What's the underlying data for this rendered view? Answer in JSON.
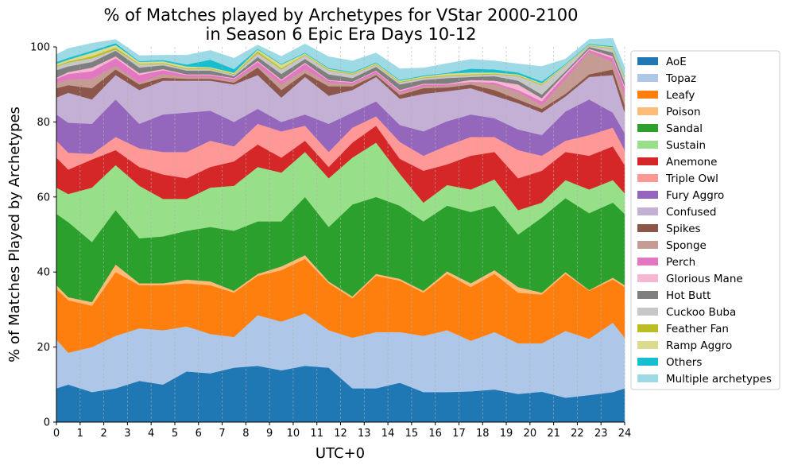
{
  "chart_data": {
    "type": "area",
    "stacked": true,
    "title_lines": [
      "% of Matches played by Archetypes for VStar 2000-2100",
      "in Season 6 Epic Era Days 10-12"
    ],
    "xlabel": "UTC+0",
    "ylabel": "% of Matches Played by Archetypes",
    "xlim": [
      0,
      24
    ],
    "ylim": [
      0,
      100
    ],
    "xticks": [
      0,
      1,
      2,
      3,
      4,
      5,
      6,
      7,
      8,
      9,
      10,
      11,
      12,
      13,
      14,
      15,
      16,
      17,
      18,
      19,
      20,
      21,
      22,
      23,
      24
    ],
    "yticks": [
      0,
      20,
      40,
      60,
      80,
      100
    ],
    "grid": "vertical dashed",
    "legend_position": "right",
    "x": [
      0,
      0.5,
      1.5,
      2.5,
      3.5,
      4.5,
      5.5,
      6.5,
      7.5,
      8.5,
      9.5,
      10.5,
      11.5,
      12.5,
      13.5,
      14.5,
      15.5,
      16.5,
      17.5,
      18.5,
      19.5,
      20.5,
      21.5,
      22.5,
      23.5,
      24
    ],
    "series": [
      {
        "name": "AoE",
        "color": "#1f77b4",
        "values": [
          9,
          10,
          8,
          9,
          11,
          10,
          13.5,
          13,
          14.5,
          15,
          13.8,
          15,
          14.5,
          9,
          9,
          10.5,
          8,
          8,
          8.2,
          8.7,
          7.5,
          8.1,
          6.5,
          7.2,
          8,
          9
        ]
      },
      {
        "name": "Topaz",
        "color": "#aec7e8",
        "values": [
          13,
          8.5,
          12,
          14,
          14,
          14.5,
          12,
          10.5,
          8.2,
          13.5,
          13,
          14,
          10,
          13.5,
          15,
          13.5,
          15,
          16.5,
          13.5,
          15.3,
          13.5,
          12.9,
          17.8,
          15,
          18.5,
          13.5
        ]
      },
      {
        "name": "Leafy",
        "color": "#ff7f0e",
        "values": [
          13.5,
          14,
          11,
          17,
          11.5,
          12,
          11.5,
          13,
          11.8,
          10.5,
          13.7,
          14.5,
          12.5,
          10.5,
          15,
          13.7,
          11.5,
          15,
          14.3,
          15.5,
          13.5,
          13,
          15.2,
          12.8,
          11.5,
          13.5
        ]
      },
      {
        "name": "Poison",
        "color": "#ffbb78",
        "values": [
          1,
          0.8,
          1,
          2,
          0.5,
          0.5,
          1,
          1,
          0.5,
          0.5,
          1,
          1,
          0.5,
          0.5,
          0.5,
          0.5,
          0.5,
          0.7,
          1,
          1,
          1.5,
          0.5,
          0.5,
          0.2,
          0.5,
          0.5
        ]
      },
      {
        "name": "Sandal",
        "color": "#2ca02c",
        "values": [
          19,
          20,
          16,
          14.5,
          12,
          12.5,
          13,
          14.5,
          16,
          14,
          12,
          15.5,
          14.5,
          24.5,
          20.5,
          19.5,
          18.5,
          17.5,
          19,
          17.2,
          14,
          20,
          19.7,
          20.5,
          20,
          19
        ]
      },
      {
        "name": "Sustain",
        "color": "#98df8a",
        "values": [
          7,
          7.5,
          14.5,
          12,
          14,
          10,
          8.5,
          10.5,
          12,
          14.5,
          13,
          12,
          13,
          12.5,
          14.5,
          8.5,
          5,
          5.5,
          6,
          7,
          6.5,
          4,
          4.8,
          6.3,
          6,
          5.5
        ]
      },
      {
        "name": "Anemone",
        "color": "#d62728",
        "values": [
          8,
          6.5,
          7.5,
          4,
          5,
          6.5,
          5.5,
          5.5,
          6.5,
          6,
          4,
          3,
          3,
          4,
          4.5,
          4,
          8.5,
          5.5,
          9,
          7.3,
          8.5,
          8.5,
          7.5,
          9,
          9,
          7.5
        ]
      },
      {
        "name": "Triple Owl",
        "color": "#ff9896",
        "values": [
          4.5,
          4.5,
          1.5,
          3.5,
          5,
          6,
          7,
          7,
          4,
          5.5,
          7,
          4,
          4,
          4,
          2.5,
          4.5,
          4,
          5,
          5,
          4,
          7.5,
          4,
          3,
          5.5,
          5,
          4
        ]
      },
      {
        "name": "Fury Aggro",
        "color": "#9467bd",
        "values": [
          7,
          8,
          8,
          10,
          6.5,
          10,
          10.5,
          8,
          6.5,
          4,
          2.5,
          3,
          7.5,
          4,
          4,
          4.5,
          6.5,
          6.5,
          6,
          5,
          5.5,
          5.5,
          7.8,
          9.5,
          4,
          4.5
        ]
      },
      {
        "name": "Confused",
        "color": "#c5b0d5",
        "values": [
          4.5,
          8,
          6.5,
          6.5,
          9,
          9,
          8.5,
          8,
          10,
          9,
          6.5,
          10,
          7.5,
          6,
          6.5,
          7,
          10,
          8,
          7,
          6,
          7,
          6,
          4,
          6,
          10,
          5.5
        ]
      },
      {
        "name": "Spikes",
        "color": "#8c564b",
        "values": [
          2.5,
          2,
          3,
          1.5,
          1.5,
          0.8,
          0.5,
          0.5,
          0.5,
          2,
          2,
          1,
          2.5,
          1,
          0.5,
          1,
          1.5,
          1,
          1,
          1.5,
          1,
          1,
          0.7,
          0.7,
          1.5,
          2
        ]
      },
      {
        "name": "Sponge",
        "color": "#c49c94",
        "values": [
          1.5,
          1.5,
          2.5,
          1,
          0.5,
          1,
          0.5,
          0.5,
          0.5,
          0.5,
          1.5,
          1,
          1,
          0.5,
          0.5,
          0.5,
          0.5,
          0.5,
          0.5,
          1.5,
          2,
          1,
          4,
          6,
          2,
          2.5
        ]
      },
      {
        "name": "Perch",
        "color": "#e377c2",
        "values": [
          1,
          1.5,
          2,
          2,
          2,
          1,
          0.5,
          0.5,
          0.5,
          1,
          1,
          1.5,
          0.5,
          0.5,
          0.5,
          0.5,
          0.5,
          0.3,
          0.2,
          0.5,
          0.5,
          1,
          1,
          0.5,
          1,
          2
        ]
      },
      {
        "name": "Glorious Mane",
        "color": "#f7b6d2",
        "values": [
          0.3,
          0.5,
          1,
          0.5,
          0.5,
          0.3,
          0.2,
          0.2,
          0.2,
          0.3,
          0.3,
          0.3,
          0.2,
          0.2,
          0.2,
          0.3,
          0.2,
          0.2,
          0.5,
          0.5,
          1.5,
          0.8,
          0.5,
          0.3,
          0.5,
          0.5
        ]
      },
      {
        "name": "Hot Butt",
        "color": "#7f7f7f",
        "values": [
          2,
          1.5,
          1.5,
          1.5,
          1.5,
          1,
          1,
          1,
          0.5,
          1,
          1.5,
          1,
          1.5,
          1,
          1,
          1.5,
          1,
          1.5,
          0.8,
          1.2,
          1,
          1,
          0.5,
          0.5,
          1,
          1
        ]
      },
      {
        "name": "Cuckoo Buba",
        "color": "#c7c7c7",
        "values": [
          1,
          1,
          1,
          0.3,
          0.8,
          0.4,
          0.4,
          0.4,
          0.4,
          1,
          1.2,
          1,
          1,
          1,
          0.5,
          0.5,
          0.5,
          0.5,
          0.5,
          0.5,
          1.2,
          2.5,
          1.5,
          0.3,
          1,
          1
        ]
      },
      {
        "name": "Feather Fan",
        "color": "#bcbd22",
        "values": [
          0.2,
          0.3,
          0.5,
          0.5,
          0.2,
          0.2,
          0.2,
          0.2,
          0.2,
          0.5,
          0.3,
          0.2,
          0.2,
          0.2,
          0.2,
          0.2,
          0.2,
          0.2,
          0.2,
          0.2,
          0.2,
          0.2,
          0.1,
          0.1,
          0.2,
          0.2
        ]
      },
      {
        "name": "Ramp Aggro",
        "color": "#dbdb8d",
        "values": [
          0.5,
          0.5,
          1,
          0.7,
          0.5,
          0.5,
          0.5,
          0.3,
          0.3,
          0.5,
          1,
          0.3,
          0.3,
          0.2,
          0.3,
          0.3,
          0.3,
          0.5,
          0.5,
          0.3,
          0.3,
          0.3,
          0.2,
          0.2,
          0.3,
          0.3
        ]
      },
      {
        "name": "Others",
        "color": "#17becf",
        "values": [
          0.5,
          0.5,
          0.5,
          0.5,
          0.2,
          0.3,
          0.5,
          2,
          1,
          0.2,
          0.2,
          0.2,
          0.2,
          0.2,
          0.2,
          0.2,
          0.2,
          0.2,
          1,
          0.8,
          0.5,
          0.5,
          0.2,
          0.2,
          0.2,
          0.2
        ]
      },
      {
        "name": "Multiple archetypes",
        "color": "#9edae5",
        "values": [
          2,
          2.5,
          2,
          1,
          1.5,
          1.3,
          2.5,
          2.5,
          2.9,
          1,
          2,
          2.3,
          3,
          3,
          2.5,
          3,
          2,
          2.5,
          2.5,
          2.3,
          2.3,
          4,
          1.3,
          1.2,
          2.1,
          2.5
        ]
      }
    ]
  }
}
